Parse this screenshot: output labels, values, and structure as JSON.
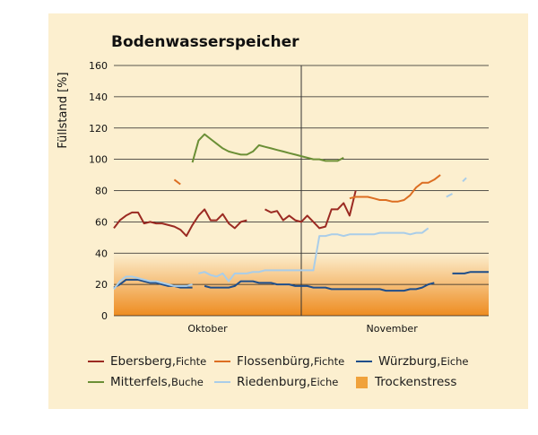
{
  "chart_data": {
    "type": "line",
    "title": "Bodenwasserspeicher",
    "ylabel": "Füllstand [%]",
    "xlabel": "",
    "ylim": [
      0,
      160
    ],
    "yticks": [
      0,
      20,
      40,
      60,
      80,
      100,
      120,
      140,
      160
    ],
    "xlim": [
      0,
      62
    ],
    "x_category_labels": [
      {
        "label": "Oktober",
        "x": 15.5
      },
      {
        "label": "November",
        "x": 46
      }
    ],
    "month_divider_x": 31,
    "grid": true,
    "background_band": {
      "name": "Trockenstress",
      "y_from": 0,
      "y_to": 40,
      "color": "#f0a23c"
    },
    "series": [
      {
        "name": "Ebersberg",
        "species": "Fichte",
        "color": "#9b2a22",
        "segments": [
          [
            [
              0,
              56
            ],
            [
              1,
              61
            ],
            [
              2,
              64
            ],
            [
              3,
              66
            ],
            [
              4,
              66
            ],
            [
              5,
              59
            ],
            [
              6,
              60
            ],
            [
              7,
              59
            ],
            [
              8,
              59
            ],
            [
              9,
              58
            ],
            [
              10,
              57
            ],
            [
              11,
              55
            ],
            [
              12,
              51
            ],
            [
              13,
              58
            ],
            [
              14,
              64
            ],
            [
              15,
              68
            ],
            [
              16,
              61
            ],
            [
              17,
              61
            ],
            [
              18,
              65
            ],
            [
              19,
              59
            ],
            [
              20,
              56
            ],
            [
              21,
              60
            ],
            [
              22,
              61
            ]
          ],
          [
            [
              25,
              68
            ],
            [
              26,
              66
            ],
            [
              27,
              67
            ],
            [
              28,
              61
            ],
            [
              29,
              64
            ],
            [
              30,
              61
            ],
            [
              31,
              60
            ],
            [
              32,
              64
            ],
            [
              33,
              60
            ],
            [
              34,
              56
            ],
            [
              35,
              57
            ],
            [
              36,
              68
            ],
            [
              37,
              68
            ],
            [
              38,
              72
            ],
            [
              39,
              64
            ],
            [
              40,
              80
            ]
          ]
        ]
      },
      {
        "name": "Flossenbürg",
        "species": "Fichte",
        "color": "#dc6e22",
        "segments": [
          [
            [
              10,
              87
            ],
            [
              11,
              84
            ]
          ],
          [
            [
              39,
              75
            ],
            [
              40,
              76
            ],
            [
              41,
              76
            ],
            [
              42,
              76
            ],
            [
              43,
              75
            ],
            [
              44,
              74
            ],
            [
              45,
              74
            ],
            [
              46,
              73
            ],
            [
              47,
              73
            ],
            [
              48,
              74
            ],
            [
              49,
              77
            ],
            [
              50,
              82
            ],
            [
              51,
              85
            ],
            [
              52,
              85
            ],
            [
              53,
              87
            ],
            [
              54,
              90
            ]
          ]
        ]
      },
      {
        "name": "Würzburg",
        "species": "Eiche",
        "color": "#1f4e8a",
        "segments": [
          [
            [
              0,
              18
            ],
            [
              1,
              20
            ],
            [
              2,
              23
            ],
            [
              3,
              23
            ],
            [
              4,
              23
            ],
            [
              5,
              22
            ],
            [
              6,
              21
            ],
            [
              7,
              21
            ],
            [
              8,
              20
            ],
            [
              9,
              19
            ],
            [
              10,
              19
            ],
            [
              11,
              18
            ],
            [
              12,
              18
            ],
            [
              13,
              18
            ]
          ],
          [
            [
              15,
              19
            ],
            [
              16,
              18
            ],
            [
              17,
              18
            ],
            [
              18,
              18
            ],
            [
              19,
              18
            ],
            [
              20,
              19
            ],
            [
              21,
              22
            ],
            [
              22,
              22
            ],
            [
              23,
              22
            ],
            [
              24,
              21
            ],
            [
              25,
              21
            ],
            [
              26,
              21
            ],
            [
              27,
              20
            ],
            [
              28,
              20
            ],
            [
              29,
              20
            ],
            [
              30,
              19
            ],
            [
              31,
              19
            ],
            [
              32,
              19
            ],
            [
              33,
              18
            ],
            [
              34,
              18
            ],
            [
              35,
              18
            ],
            [
              36,
              17
            ],
            [
              37,
              17
            ],
            [
              38,
              17
            ],
            [
              39,
              17
            ],
            [
              40,
              17
            ],
            [
              41,
              17
            ],
            [
              42,
              17
            ],
            [
              43,
              17
            ],
            [
              44,
              17
            ],
            [
              45,
              16
            ],
            [
              46,
              16
            ],
            [
              47,
              16
            ],
            [
              48,
              16
            ],
            [
              49,
              17
            ],
            [
              50,
              17
            ],
            [
              51,
              18
            ],
            [
              52,
              20
            ],
            [
              53,
              21
            ]
          ],
          [
            [
              56,
              27
            ],
            [
              57,
              27
            ],
            [
              58,
              27
            ],
            [
              59,
              28
            ],
            [
              60,
              28
            ],
            [
              61,
              28
            ],
            [
              62,
              28
            ]
          ]
        ]
      },
      {
        "name": "Mitterfels",
        "species": "Buche",
        "color": "#6b8f36",
        "segments": [
          [
            [
              13,
              98
            ],
            [
              14,
              112
            ],
            [
              15,
              116
            ],
            [
              16,
              113
            ],
            [
              17,
              110
            ],
            [
              18,
              107
            ],
            [
              19,
              105
            ],
            [
              20,
              104
            ],
            [
              21,
              103
            ],
            [
              22,
              103
            ],
            [
              23,
              105
            ],
            [
              24,
              109
            ],
            [
              25,
              108
            ],
            [
              26,
              107
            ],
            [
              27,
              106
            ],
            [
              28,
              105
            ],
            [
              29,
              104
            ],
            [
              30,
              103
            ],
            [
              31,
              102
            ],
            [
              32,
              101
            ],
            [
              33,
              100
            ],
            [
              34,
              100
            ],
            [
              35,
              99
            ],
            [
              36,
              99
            ],
            [
              37,
              99
            ],
            [
              38,
              101
            ]
          ]
        ]
      },
      {
        "name": "Riedenburg",
        "species": "Eiche",
        "color": "#a9cde9",
        "segments": [
          [
            [
              0,
              17
            ],
            [
              1,
              22
            ],
            [
              2,
              25
            ],
            [
              3,
              25
            ],
            [
              4,
              24
            ],
            [
              5,
              23
            ],
            [
              6,
              22
            ],
            [
              7,
              22
            ],
            [
              8,
              21
            ],
            [
              9,
              20
            ],
            [
              10,
              19
            ],
            [
              11,
              19
            ],
            [
              12,
              19
            ],
            [
              13,
              20
            ]
          ],
          [
            [
              14,
              27
            ],
            [
              15,
              28
            ],
            [
              16,
              26
            ],
            [
              17,
              25
            ],
            [
              18,
              27
            ],
            [
              19,
              22
            ],
            [
              20,
              27
            ],
            [
              21,
              27
            ],
            [
              22,
              27
            ],
            [
              23,
              28
            ],
            [
              24,
              28
            ],
            [
              25,
              29
            ],
            [
              26,
              29
            ],
            [
              27,
              29
            ],
            [
              28,
              29
            ],
            [
              29,
              29
            ],
            [
              30,
              29
            ],
            [
              31,
              29
            ],
            [
              32,
              29
            ],
            [
              33,
              29
            ],
            [
              34,
              51
            ],
            [
              35,
              51
            ],
            [
              36,
              52
            ],
            [
              37,
              52
            ],
            [
              38,
              51
            ],
            [
              39,
              52
            ],
            [
              40,
              52
            ],
            [
              41,
              52
            ],
            [
              42,
              52
            ],
            [
              43,
              52
            ],
            [
              44,
              53
            ],
            [
              45,
              53
            ],
            [
              46,
              53
            ],
            [
              47,
              53
            ],
            [
              48,
              53
            ],
            [
              49,
              52
            ],
            [
              50,
              53
            ],
            [
              51,
              53
            ],
            [
              52,
              56
            ]
          ],
          [
            [
              55,
              76
            ],
            [
              56,
              78
            ]
          ],
          [
            [
              58,
              87
            ]
          ]
        ]
      }
    ],
    "legend": [
      [
        {
          "name": "Ebersberg",
          "species": "Fichte",
          "color": "#9b2a22",
          "kind": "line"
        },
        {
          "name": "Flossenbürg",
          "species": "Fichte",
          "color": "#dc6e22",
          "kind": "line"
        },
        {
          "name": "Würzburg",
          "species": "Eiche",
          "color": "#1f4e8a",
          "kind": "line"
        }
      ],
      [
        {
          "name": "Mitterfels",
          "species": "Buche",
          "color": "#6b8f36",
          "kind": "line"
        },
        {
          "name": "Riedenburg",
          "species": "Eiche",
          "color": "#a9cde9",
          "kind": "line"
        },
        {
          "name": "Trockenstress",
          "species": "",
          "color": "#f0a23c",
          "kind": "square"
        }
      ]
    ]
  }
}
